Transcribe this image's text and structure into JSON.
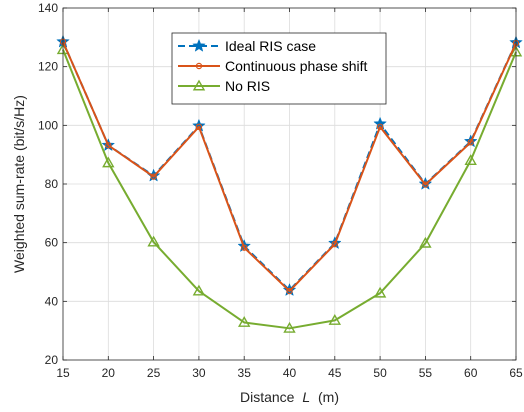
{
  "chart_data": {
    "type": "line",
    "xlabel_prefix": "Distance",
    "xlabel_var": "L",
    "xlabel_unit": "(m)",
    "ylabel": "Weighted sum-rate (bit/s/Hz)",
    "x": [
      15,
      20,
      25,
      30,
      35,
      40,
      45,
      50,
      55,
      60,
      65
    ],
    "xlim": [
      15,
      65
    ],
    "ylim": [
      20,
      140
    ],
    "xticks": [
      15,
      20,
      25,
      30,
      35,
      40,
      45,
      50,
      55,
      60,
      65
    ],
    "yticks": [
      20,
      40,
      60,
      80,
      100,
      120,
      140
    ],
    "grid": true,
    "legend_position": "top-center",
    "series": [
      {
        "name": "Ideal RIS case",
        "color": "#0072BD",
        "marker": "star",
        "line": "dashed",
        "values": [
          128.5,
          93.2,
          82.8,
          99.8,
          58.8,
          43.8,
          59.8,
          100.5,
          80.0,
          94.5,
          128.2
        ]
      },
      {
        "name": "Continuous phase shift",
        "color": "#D95319",
        "marker": "circle",
        "line": "solid",
        "values": [
          128.5,
          93.2,
          82.5,
          99.5,
          58.3,
          43.5,
          59.5,
          99.5,
          79.8,
          94.2,
          128.0
        ]
      },
      {
        "name": "No RIS",
        "color": "#77AC30",
        "marker": "triangle",
        "line": "solid",
        "values": [
          125.8,
          87.2,
          60.2,
          43.5,
          32.8,
          30.8,
          33.5,
          42.8,
          59.8,
          88.0,
          125.0
        ]
      }
    ]
  }
}
